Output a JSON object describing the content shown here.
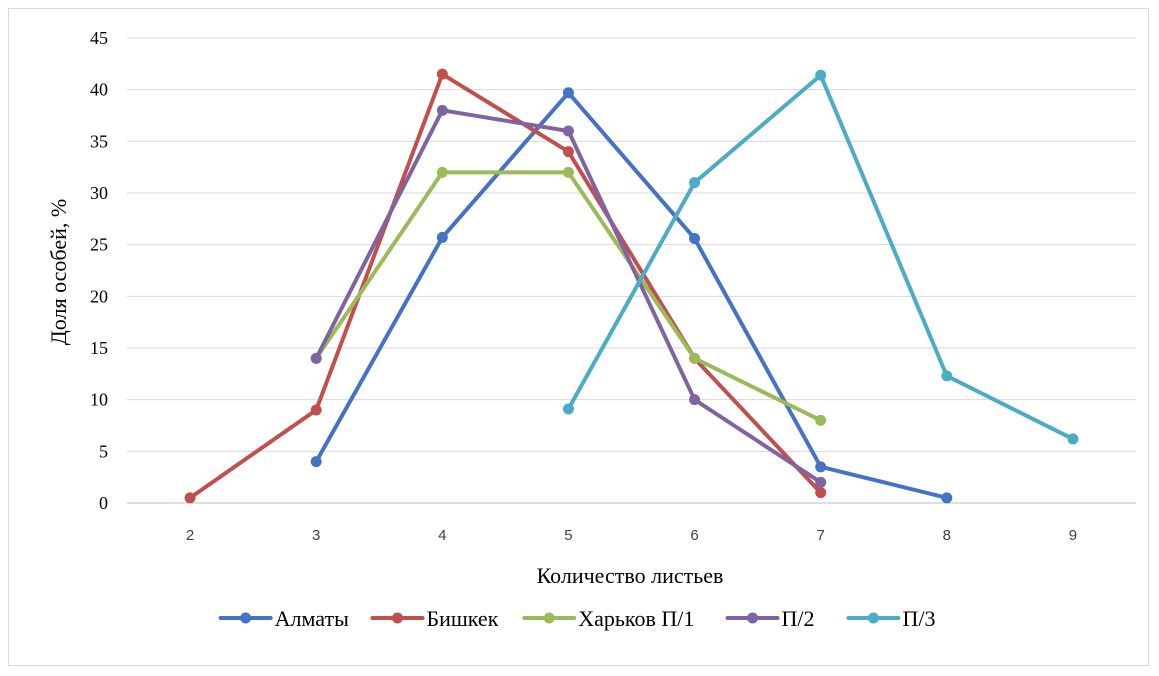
{
  "chart_data": {
    "type": "line",
    "title": "",
    "xlabel": "Количество листьев",
    "ylabel": "Доля особей, %",
    "categories": [
      "2",
      "3",
      "4",
      "5",
      "6",
      "7",
      "8",
      "9"
    ],
    "ylim": [
      0,
      45
    ],
    "yticks": [
      "0",
      "5",
      "10",
      "15",
      "20",
      "25",
      "30",
      "35",
      "40",
      "45"
    ],
    "grid": true,
    "legend_position": "bottom",
    "series": [
      {
        "name": "Алматы",
        "color": "#4472C4",
        "values": [
          null,
          4,
          25.7,
          39.7,
          25.6,
          3.5,
          0.5,
          null
        ]
      },
      {
        "name": "Бишкек",
        "color": "#C0504D",
        "values": [
          0.5,
          9,
          41.5,
          34,
          14,
          1,
          null,
          null
        ]
      },
      {
        "name": "Харьков П/1",
        "color": "#9BBB59",
        "values": [
          null,
          14,
          32,
          32,
          14,
          8,
          null,
          null
        ]
      },
      {
        "name": "П/2",
        "color": "#8064A2",
        "values": [
          null,
          14,
          38,
          36,
          10,
          2,
          null,
          null
        ]
      },
      {
        "name": "П/3",
        "color": "#4BACC6",
        "values": [
          null,
          null,
          null,
          9.1,
          31,
          41.4,
          12.3,
          6.2
        ]
      }
    ]
  }
}
